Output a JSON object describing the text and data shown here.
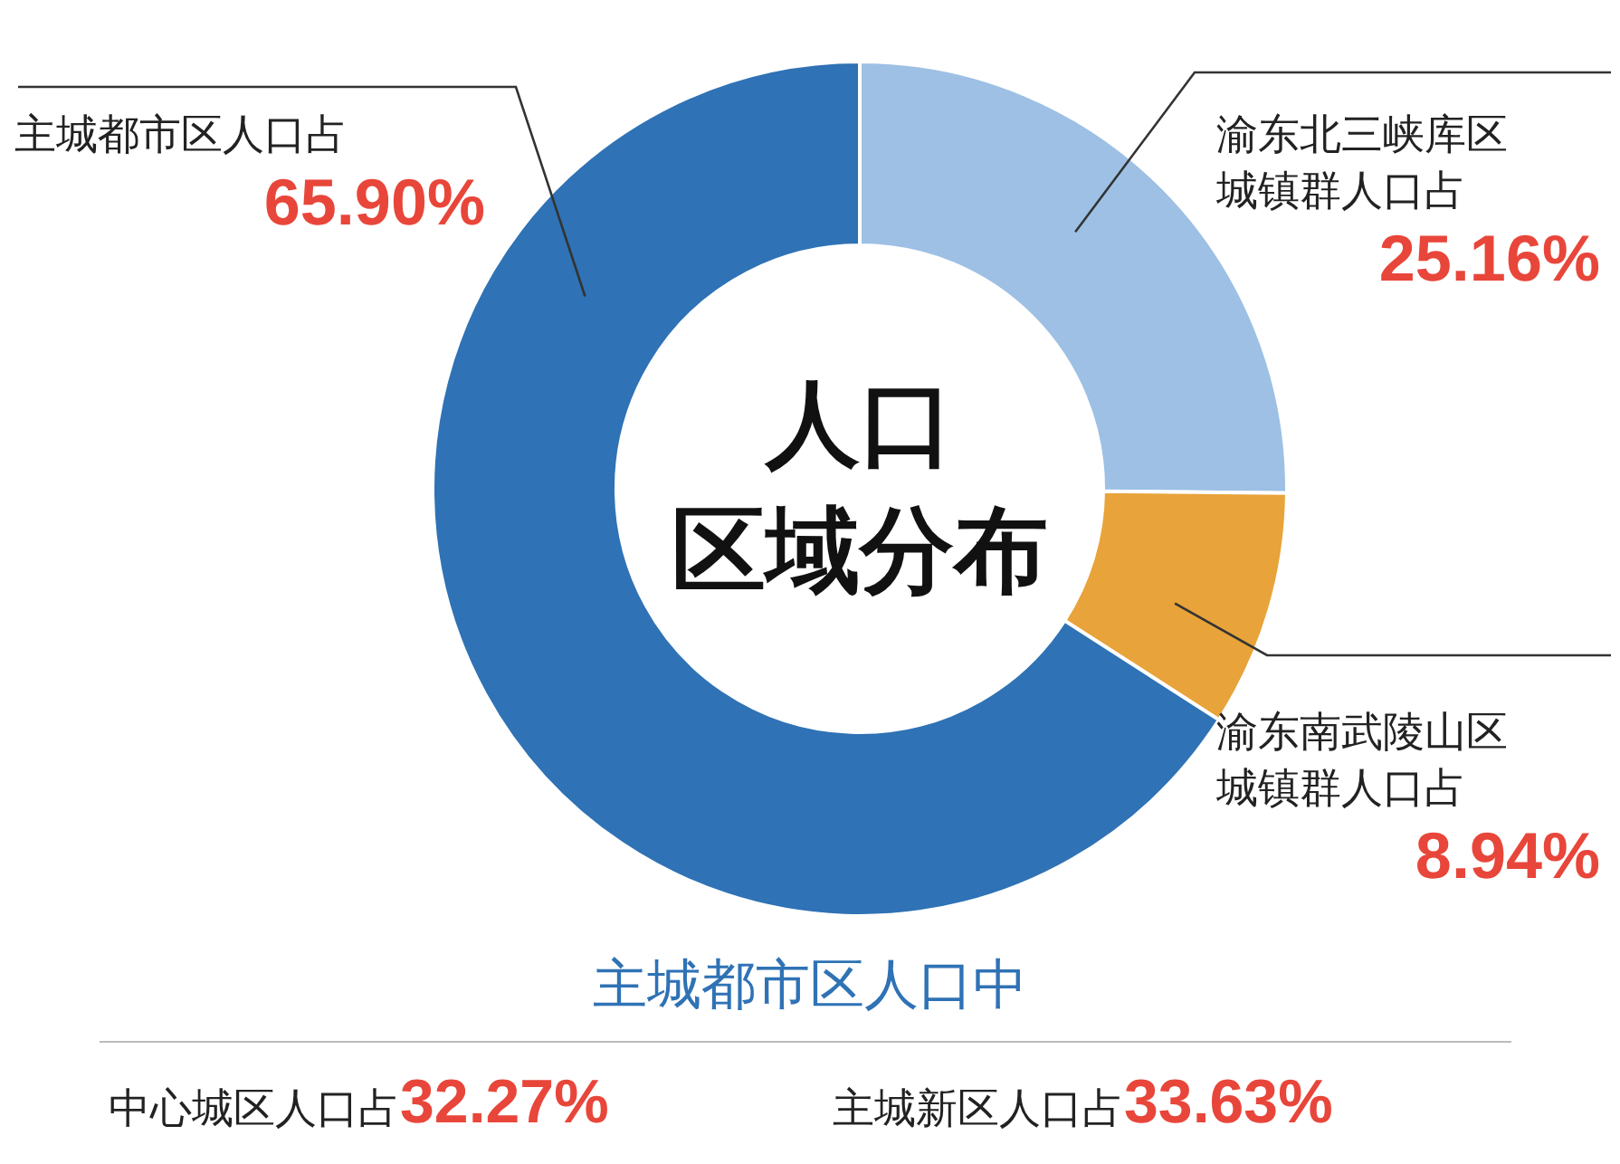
{
  "chart_data": {
    "type": "donut",
    "title": "人口区域分布",
    "categories": [
      "渝东北三峡库区城镇群人口占",
      "渝东南武陵山区城镇群人口占",
      "主城都市区人口占"
    ],
    "values": [
      25.16,
      8.94,
      65.9
    ],
    "value_labels": [
      "25.16%",
      "8.94%",
      "65.90%"
    ],
    "colors": [
      "#9dc0e4",
      "#e8a33a",
      "#2f72b5"
    ],
    "legend": false,
    "annotations": [
      "主城都市区人口中",
      "中心城区人口占32.27%",
      "主城新区人口占33.63%"
    ]
  }
}
